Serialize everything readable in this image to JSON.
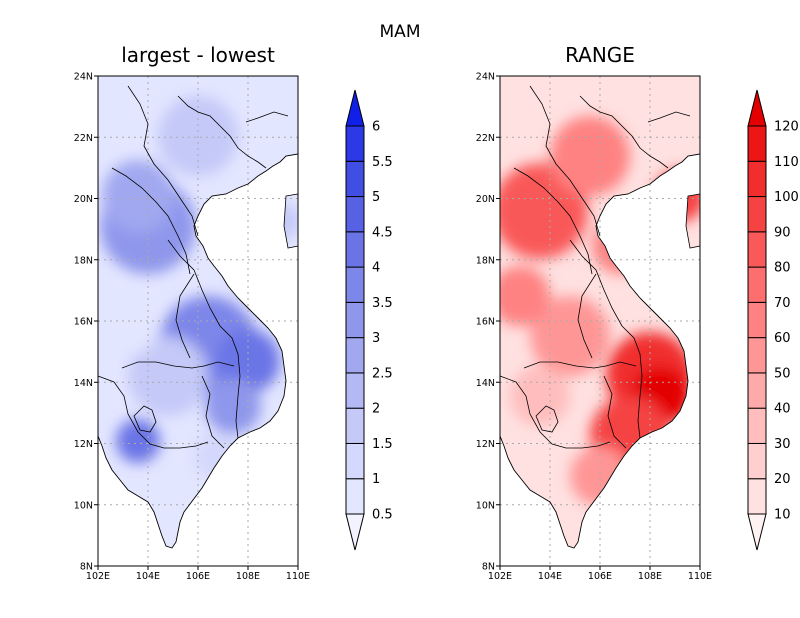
{
  "figure_title": "MAM",
  "panels": [
    {
      "title": "largest - lowest",
      "colorbar": {
        "levels": [
          "0.5",
          "1",
          "1.5",
          "2",
          "2.5",
          "3",
          "3.5",
          "4",
          "4.5",
          "5",
          "5.5",
          "6"
        ],
        "colors": [
          "#f2f3ff",
          "#e3e6ff",
          "#d4d8fc",
          "#c4c9f8",
          "#b3b9f4",
          "#a1a8f0",
          "#8f97ec",
          "#7d86e9",
          "#6a74e6",
          "#5661e4",
          "#414ee3",
          "#2b3ae6",
          "#1020e8"
        ]
      }
    },
    {
      "title": "RANGE",
      "colorbar": {
        "levels": [
          "10",
          "20",
          "30",
          "40",
          "50",
          "60",
          "70",
          "80",
          "90",
          "100",
          "110",
          "120"
        ],
        "colors": [
          "#fff2f2",
          "#ffe1e1",
          "#ffcfcf",
          "#ffbdbd",
          "#ffaaaa",
          "#ff9696",
          "#ff8282",
          "#fd6e6e",
          "#f95959",
          "#f54343",
          "#f12d2d",
          "#ec1616",
          "#e30000"
        ]
      }
    }
  ],
  "axes": {
    "x_ticks": [
      "102E",
      "104E",
      "106E",
      "108E",
      "110E"
    ],
    "y_ticks": [
      "8N",
      "10N",
      "12N",
      "14N",
      "16N",
      "18N",
      "20N",
      "22N",
      "24N"
    ]
  }
}
